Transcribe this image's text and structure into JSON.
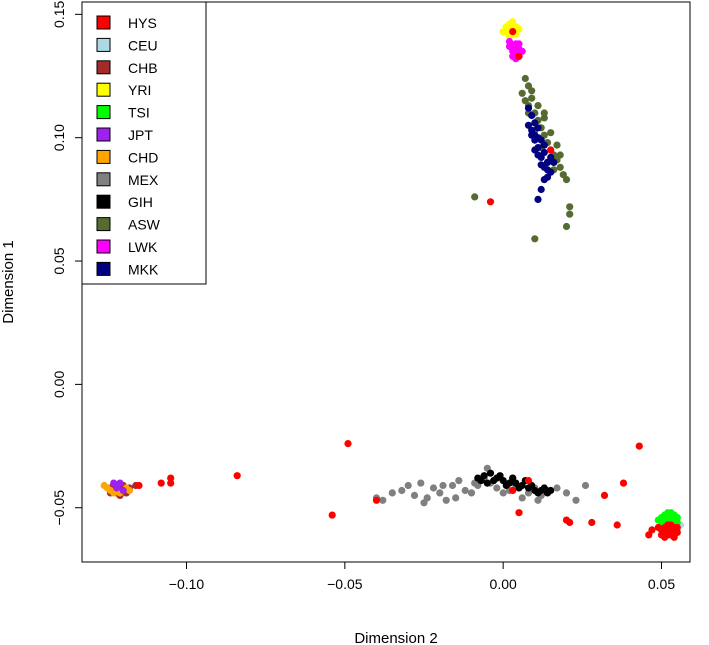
{
  "chart_data": {
    "type": "scatter",
    "title": "",
    "xlabel": "Dimension 2",
    "ylabel": "Dimension 1",
    "xlim": [
      -0.133,
      0.059
    ],
    "ylim": [
      -0.072,
      0.155
    ],
    "xticks": [
      -0.1,
      -0.05,
      0.0,
      0.05
    ],
    "xtick_labels": [
      "−0.10",
      "−0.05",
      "0.00",
      "0.05"
    ],
    "yticks": [
      -0.05,
      0.0,
      0.05,
      0.1,
      0.15
    ],
    "ytick_labels": [
      "−0.05",
      "0.00",
      "0.05",
      "0.10",
      "0.15"
    ],
    "legend_position": "top-left",
    "series": [
      {
        "name": "YRI",
        "color": "#FFFF00",
        "points": [
          [
            0.001,
            0.143
          ],
          [
            0.002,
            0.146
          ],
          [
            0.003,
            0.144
          ],
          [
            0.004,
            0.142
          ],
          [
            0.002,
            0.141
          ],
          [
            0.003,
            0.147
          ],
          [
            0.001,
            0.145
          ],
          [
            0.004,
            0.145
          ],
          [
            0.0,
            0.143
          ],
          [
            0.005,
            0.144
          ],
          [
            0.002,
            0.143
          ],
          [
            0.003,
            0.142
          ]
        ]
      },
      {
        "name": "LWK",
        "color": "#FF00FF",
        "points": [
          [
            0.002,
            0.137
          ],
          [
            0.003,
            0.135
          ],
          [
            0.004,
            0.138
          ],
          [
            0.005,
            0.136
          ],
          [
            0.003,
            0.133
          ],
          [
            0.004,
            0.134
          ],
          [
            0.002,
            0.139
          ],
          [
            0.005,
            0.133
          ],
          [
            0.006,
            0.135
          ],
          [
            0.003,
            0.137
          ],
          [
            0.004,
            0.132
          ],
          [
            0.005,
            0.138
          ]
        ]
      },
      {
        "name": "ASW",
        "color": "#556B2F",
        "points": [
          [
            0.007,
            0.124
          ],
          [
            0.008,
            0.121
          ],
          [
            0.006,
            0.118
          ],
          [
            0.009,
            0.116
          ],
          [
            0.008,
            0.113
          ],
          [
            0.01,
            0.11
          ],
          [
            0.011,
            0.107
          ],
          [
            0.012,
            0.104
          ],
          [
            0.013,
            0.101
          ],
          [
            0.014,
            0.098
          ],
          [
            0.015,
            0.095
          ],
          [
            0.016,
            0.093
          ],
          [
            0.017,
            0.091
          ],
          [
            0.018,
            0.088
          ],
          [
            0.019,
            0.085
          ],
          [
            0.02,
            0.083
          ],
          [
            0.021,
            0.072
          ],
          [
            0.021,
            0.069
          ],
          [
            0.02,
            0.064
          ],
          [
            0.01,
            0.059
          ],
          [
            -0.009,
            0.076
          ],
          [
            0.007,
            0.115
          ],
          [
            0.009,
            0.119
          ],
          [
            0.011,
            0.113
          ],
          [
            0.013,
            0.108
          ],
          [
            0.015,
            0.102
          ],
          [
            0.012,
            0.096
          ],
          [
            0.014,
            0.09
          ],
          [
            0.016,
            0.087
          ],
          [
            0.008,
            0.11
          ],
          [
            0.01,
            0.103
          ],
          [
            0.013,
            0.11
          ],
          [
            0.017,
            0.097
          ],
          [
            0.018,
            0.093
          ]
        ]
      },
      {
        "name": "MKK",
        "color": "#000080",
        "points": [
          [
            0.008,
            0.112
          ],
          [
            0.009,
            0.109
          ],
          [
            0.01,
            0.106
          ],
          [
            0.011,
            0.104
          ],
          [
            0.01,
            0.101
          ],
          [
            0.012,
            0.099
          ],
          [
            0.011,
            0.096
          ],
          [
            0.013,
            0.094
          ],
          [
            0.012,
            0.092
          ],
          [
            0.014,
            0.09
          ],
          [
            0.013,
            0.088
          ],
          [
            0.015,
            0.086
          ],
          [
            0.014,
            0.084
          ],
          [
            0.009,
            0.103
          ],
          [
            0.011,
            0.1
          ],
          [
            0.013,
            0.097
          ],
          [
            0.012,
            0.089
          ],
          [
            0.015,
            0.092
          ],
          [
            0.01,
            0.095
          ],
          [
            0.008,
            0.105
          ],
          [
            0.012,
            0.079
          ],
          [
            0.011,
            0.075
          ],
          [
            0.013,
            0.083
          ],
          [
            0.01,
            0.099
          ],
          [
            0.014,
            0.087
          ],
          [
            0.016,
            0.09
          ],
          [
            0.009,
            0.101
          ],
          [
            0.011,
            0.093
          ]
        ]
      },
      {
        "name": "MEX",
        "color": "#808080",
        "points": [
          [
            -0.04,
            -0.046
          ],
          [
            -0.038,
            -0.047
          ],
          [
            -0.035,
            -0.044
          ],
          [
            -0.032,
            -0.043
          ],
          [
            -0.03,
            -0.041
          ],
          [
            -0.028,
            -0.045
          ],
          [
            -0.026,
            -0.04
          ],
          [
            -0.024,
            -0.046
          ],
          [
            -0.022,
            -0.042
          ],
          [
            -0.02,
            -0.044
          ],
          [
            -0.018,
            -0.047
          ],
          [
            -0.016,
            -0.041
          ],
          [
            -0.014,
            -0.039
          ],
          [
            -0.012,
            -0.043
          ],
          [
            -0.01,
            -0.044
          ],
          [
            -0.008,
            -0.041
          ],
          [
            -0.006,
            -0.038
          ],
          [
            -0.004,
            -0.04
          ],
          [
            -0.002,
            -0.042
          ],
          [
            0.0,
            -0.044
          ],
          [
            0.002,
            -0.043
          ],
          [
            0.004,
            -0.041
          ],
          [
            0.006,
            -0.046
          ],
          [
            0.008,
            -0.044
          ],
          [
            0.01,
            -0.042
          ],
          [
            0.012,
            -0.045
          ],
          [
            0.014,
            -0.043
          ],
          [
            0.017,
            -0.042
          ],
          [
            0.02,
            -0.044
          ],
          [
            0.023,
            -0.047
          ],
          [
            0.026,
            -0.041
          ],
          [
            -0.025,
            -0.048
          ],
          [
            -0.015,
            -0.046
          ],
          [
            -0.005,
            -0.034
          ],
          [
            0.003,
            -0.038
          ],
          [
            -0.009,
            -0.04
          ],
          [
            -0.019,
            -0.041
          ],
          [
            0.011,
            -0.047
          ]
        ]
      },
      {
        "name": "GIH",
        "color": "#000000",
        "points": [
          [
            -0.008,
            -0.038
          ],
          [
            -0.006,
            -0.037
          ],
          [
            -0.004,
            -0.036
          ],
          [
            -0.002,
            -0.038
          ],
          [
            0.0,
            -0.039
          ],
          [
            0.002,
            -0.04
          ],
          [
            0.004,
            -0.04
          ],
          [
            0.006,
            -0.041
          ],
          [
            0.008,
            -0.042
          ],
          [
            0.01,
            -0.043
          ],
          [
            0.012,
            -0.043
          ],
          [
            0.014,
            -0.044
          ],
          [
            -0.003,
            -0.039
          ],
          [
            0.001,
            -0.041
          ],
          [
            0.005,
            -0.042
          ],
          [
            0.009,
            -0.041
          ],
          [
            0.011,
            -0.044
          ],
          [
            -0.005,
            -0.04
          ],
          [
            0.003,
            -0.038
          ],
          [
            0.007,
            -0.039
          ],
          [
            0.013,
            -0.042
          ],
          [
            -0.001,
            -0.037
          ],
          [
            -0.007,
            -0.039
          ],
          [
            0.015,
            -0.043
          ]
        ]
      },
      {
        "name": "CHB",
        "color": "#A52A2A",
        "points": [
          [
            -0.124,
            -0.042
          ],
          [
            -0.123,
            -0.043
          ],
          [
            -0.122,
            -0.041
          ],
          [
            -0.121,
            -0.043
          ],
          [
            -0.12,
            -0.042
          ],
          [
            -0.119,
            -0.044
          ],
          [
            -0.122,
            -0.044
          ],
          [
            -0.12,
            -0.041
          ],
          [
            -0.118,
            -0.042
          ],
          [
            -0.123,
            -0.041
          ],
          [
            -0.116,
            -0.041
          ],
          [
            -0.121,
            -0.045
          ],
          [
            -0.124,
            -0.044
          ],
          [
            -0.119,
            -0.043
          ]
        ]
      },
      {
        "name": "CHD",
        "color": "#FFA500",
        "points": [
          [
            -0.126,
            -0.041
          ],
          [
            -0.125,
            -0.042
          ],
          [
            -0.124,
            -0.043
          ],
          [
            -0.123,
            -0.044
          ],
          [
            -0.121,
            -0.044
          ],
          [
            -0.119,
            -0.042
          ],
          [
            -0.118,
            -0.043
          ]
        ]
      },
      {
        "name": "JPT",
        "color": "#A020F0",
        "points": [
          [
            -0.123,
            -0.04
          ],
          [
            -0.122,
            -0.041
          ],
          [
            -0.121,
            -0.04
          ],
          [
            -0.12,
            -0.043
          ],
          [
            -0.122,
            -0.042
          ]
        ]
      },
      {
        "name": "CEU",
        "color": "#ADD8E6",
        "points": [
          [
            0.05,
            -0.056
          ],
          [
            0.051,
            -0.057
          ],
          [
            0.052,
            -0.058
          ],
          [
            0.054,
            -0.056
          ],
          [
            0.055,
            -0.059
          ],
          [
            0.053,
            -0.06
          ],
          [
            0.056,
            -0.057
          ]
        ]
      },
      {
        "name": "TSI",
        "color": "#00FF00",
        "points": [
          [
            0.049,
            -0.055
          ],
          [
            0.05,
            -0.054
          ],
          [
            0.051,
            -0.053
          ],
          [
            0.052,
            -0.052
          ],
          [
            0.053,
            -0.052
          ],
          [
            0.054,
            -0.053
          ],
          [
            0.055,
            -0.054
          ],
          [
            0.053,
            -0.055
          ],
          [
            0.051,
            -0.055
          ],
          [
            0.052,
            -0.054
          ],
          [
            0.05,
            -0.056
          ],
          [
            0.055,
            -0.056
          ]
        ]
      },
      {
        "name": "HYS",
        "color": "#FF0000",
        "points": [
          [
            0.049,
            -0.058
          ],
          [
            0.05,
            -0.059
          ],
          [
            0.051,
            -0.06
          ],
          [
            0.052,
            -0.061
          ],
          [
            0.053,
            -0.059
          ],
          [
            0.054,
            -0.058
          ],
          [
            0.055,
            -0.06
          ],
          [
            0.051,
            -0.058
          ],
          [
            0.052,
            -0.057
          ],
          [
            0.053,
            -0.061
          ],
          [
            0.054,
            -0.062
          ],
          [
            0.055,
            -0.058
          ],
          [
            0.05,
            -0.061
          ],
          [
            0.052,
            -0.059
          ],
          [
            0.053,
            -0.057
          ],
          [
            0.054,
            -0.06
          ],
          [
            0.051,
            -0.062
          ],
          [
            0.047,
            -0.059
          ],
          [
            0.046,
            -0.061
          ],
          [
            0.003,
            0.143
          ],
          [
            0.005,
            0.133
          ],
          [
            0.015,
            0.095
          ],
          [
            -0.004,
            0.074
          ],
          [
            -0.049,
            -0.024
          ],
          [
            0.043,
            -0.025
          ],
          [
            -0.084,
            -0.037
          ],
          [
            -0.105,
            -0.038
          ],
          [
            -0.105,
            -0.04
          ],
          [
            -0.108,
            -0.04
          ],
          [
            -0.115,
            -0.041
          ],
          [
            -0.054,
            -0.053
          ],
          [
            -0.04,
            -0.047
          ],
          [
            0.003,
            -0.043
          ],
          [
            0.005,
            -0.052
          ],
          [
            0.008,
            -0.039
          ],
          [
            0.02,
            -0.055
          ],
          [
            0.021,
            -0.056
          ],
          [
            0.028,
            -0.056
          ],
          [
            0.032,
            -0.045
          ],
          [
            0.036,
            -0.057
          ],
          [
            0.038,
            -0.04
          ]
        ]
      }
    ]
  },
  "legend": {
    "items": [
      {
        "label": "HYS",
        "color": "#FF0000"
      },
      {
        "label": "CEU",
        "color": "#ADD8E6"
      },
      {
        "label": "CHB",
        "color": "#A52A2A"
      },
      {
        "label": "YRI",
        "color": "#FFFF00"
      },
      {
        "label": "TSI",
        "color": "#00FF00"
      },
      {
        "label": "JPT",
        "color": "#A020F0"
      },
      {
        "label": "CHD",
        "color": "#FFA500"
      },
      {
        "label": "MEX",
        "color": "#808080"
      },
      {
        "label": "GIH",
        "color": "#000000"
      },
      {
        "label": "ASW",
        "color": "#556B2F"
      },
      {
        "label": "LWK",
        "color": "#FF00FF"
      },
      {
        "label": "MKK",
        "color": "#000080"
      }
    ]
  }
}
